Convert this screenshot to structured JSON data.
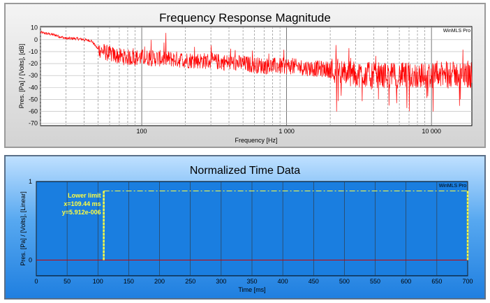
{
  "chart_data": [
    {
      "type": "line",
      "title": "Frequency Response Magnitude",
      "badge": "WinMLS Pro",
      "xlabel": "Frequency [Hz]",
      "ylabel": "Pres. [Pa] / [Volts], [dB]",
      "xscale": "log",
      "xlim": [
        20,
        19000
      ],
      "ylim": [
        -72,
        11
      ],
      "grid": true,
      "yticks": [
        10,
        0,
        -10,
        -20,
        -30,
        -40,
        -50,
        -60,
        -70
      ],
      "xticks": [
        {
          "value": 100,
          "label": "100"
        },
        {
          "value": 1000,
          "label": "1 000"
        },
        {
          "value": 10000,
          "label": "10 000"
        }
      ],
      "series": [
        {
          "color": "#ff0000",
          "x": [
            20,
            25,
            30,
            35,
            40,
            45,
            50,
            60,
            70,
            80,
            100,
            150,
            200,
            300,
            500,
            700,
            1000,
            1500,
            2000,
            2500,
            3000,
            5000,
            7000,
            10000,
            15000,
            19000
          ],
          "values": [
            6,
            4,
            1,
            1,
            0,
            -1,
            -8,
            -12,
            -14,
            -15,
            -15,
            -16,
            -17,
            -18,
            -20,
            -22,
            -22,
            -24,
            -25,
            -28,
            -29,
            -30,
            -30,
            -30,
            -29,
            -30
          ]
        }
      ]
    },
    {
      "type": "line",
      "title": "Normalized Time Data",
      "badge": "WinMLS Pro",
      "xlabel": "Time [ms]",
      "ylabel": "Pres. [Pa] / [Volts], [Linear]",
      "xlim": [
        0,
        700
      ],
      "ylim": [
        -0.2,
        1
      ],
      "grid": true,
      "yticks": [
        1,
        0
      ],
      "xticks": [
        0,
        50,
        100,
        150,
        200,
        250,
        300,
        350,
        400,
        450,
        500,
        550,
        600,
        650,
        700
      ],
      "series": [
        {
          "color": "#cc0000",
          "x": [
            0,
            700
          ],
          "values": [
            0,
            0
          ]
        }
      ],
      "cursor": {
        "label": "Lower limit",
        "x_text": "x=109.44 ms",
        "y_text": "y=5.912e-006",
        "x": 109.44,
        "window_end": 700,
        "window_level": 0.88,
        "color": "#ffff40"
      }
    }
  ]
}
